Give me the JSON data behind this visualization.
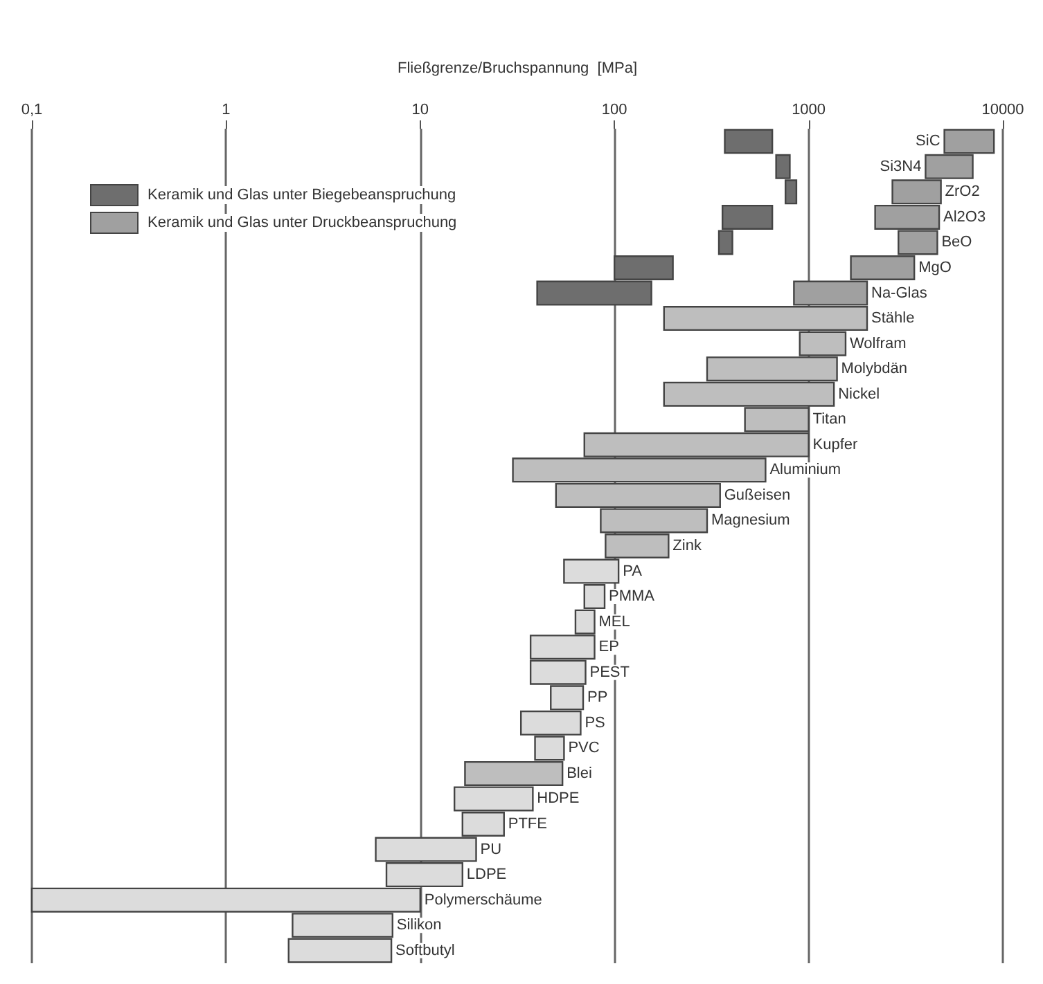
{
  "chart_data": {
    "type": "bar",
    "orientation": "horizontal",
    "log": "x",
    "xlabel": "Fließgrenze/Bruchspannung  [MPa]",
    "xlim": [
      0.1,
      10000
    ],
    "xticks": [
      {
        "value": 0.1,
        "label": "0,1"
      },
      1,
      10,
      100,
      1000,
      10000
    ],
    "grid": "x",
    "legend": "top left",
    "categories": [
      "SiC",
      "Si3N4",
      "ZrO2",
      "Al2O3",
      "BeO",
      "MgO",
      "Na-Glas",
      "Stähle",
      "Wolfram",
      "Molybdän",
      "Nickel",
      "Titan",
      "Kupfer",
      "Aluminium",
      "Gußeisen",
      "Magnesium",
      "Zink",
      "PA",
      "PMMA",
      "MEL",
      "EP",
      "PEST",
      "PP",
      "PS",
      "PVC",
      "Blei",
      "HDPE",
      "PTFE",
      "PU",
      "LDPE",
      "Polymerschäume",
      "Silikon",
      "Softbutyl"
    ],
    "series": [
      {
        "name": "Keramik und Glas unter Biegebeanspruchung",
        "color": "#6e6e6e",
        "base": [
          370,
          680,
          760,
          360,
          345,
          100,
          40,
          null,
          null,
          null,
          null,
          null,
          null,
          null,
          null,
          null,
          null,
          null,
          null,
          null,
          null,
          null,
          null,
          null,
          null,
          null,
          null,
          null,
          null,
          null,
          null,
          null,
          null
        ],
        "values": [
          280,
          120,
          105,
          290,
          60,
          100,
          115,
          null,
          null,
          null,
          null,
          null,
          null,
          null,
          null,
          null,
          null,
          null,
          null,
          null,
          null,
          null,
          null,
          null,
          null,
          null,
          null,
          null,
          null,
          null,
          null,
          null,
          null
        ]
      },
      {
        "name": "Keramik und Glas unter Druckbeanspruchung",
        "color": "#a0a0a0",
        "base": [
          5000,
          4000,
          2700,
          2200,
          2900,
          1650,
          840,
          null,
          null,
          null,
          null,
          null,
          null,
          null,
          null,
          null,
          null,
          null,
          null,
          null,
          null,
          null,
          null,
          null,
          null,
          null,
          null,
          null,
          null,
          null,
          null,
          null,
          null
        ],
        "values": [
          4000,
          3000,
          2100,
          2500,
          1700,
          1850,
          1160,
          null,
          null,
          null,
          null,
          null,
          null,
          null,
          null,
          null,
          null,
          null,
          null,
          null,
          null,
          null,
          null,
          null,
          null,
          null,
          null,
          null,
          null,
          null,
          null,
          null,
          null
        ]
      },
      {
        "color": "#bebebe",
        "base": [
          null,
          null,
          null,
          null,
          null,
          null,
          null,
          180,
          900,
          300,
          180,
          470,
          70,
          30,
          50,
          85,
          90,
          null,
          null,
          null,
          null,
          null,
          null,
          null,
          null,
          17,
          null,
          null,
          null,
          null,
          null,
          null,
          null
        ],
        "values": [
          null,
          null,
          null,
          null,
          null,
          null,
          null,
          1820,
          650,
          1100,
          1170,
          530,
          930,
          570,
          300,
          215,
          100,
          null,
          null,
          null,
          null,
          null,
          null,
          null,
          null,
          37,
          null,
          null,
          null,
          null,
          null,
          null,
          null
        ]
      },
      {
        "color": "#dcdcdc",
        "base": [
          null,
          null,
          null,
          null,
          null,
          null,
          null,
          null,
          null,
          null,
          null,
          null,
          null,
          null,
          null,
          null,
          null,
          55,
          70,
          63,
          37,
          37,
          47,
          33,
          39,
          null,
          15,
          16.5,
          5.9,
          6.7,
          0.1,
          2.2,
          2.1
        ],
        "values": [
          null,
          null,
          null,
          null,
          null,
          null,
          null,
          null,
          null,
          null,
          null,
          null,
          null,
          null,
          null,
          null,
          null,
          50,
          19,
          16,
          42,
          34,
          22,
          34,
          16,
          null,
          23,
          10.5,
          13.5,
          9.8,
          9.9,
          5,
          5
        ]
      }
    ]
  }
}
